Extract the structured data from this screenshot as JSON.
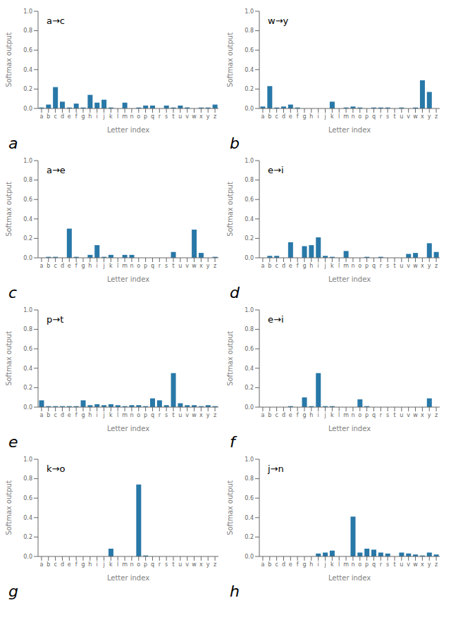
{
  "chart_data": [
    {
      "type": "bar",
      "title": "a→c",
      "annotation": "a",
      "xlabel": "Letter index",
      "ylabel": "Softmax output",
      "color": "#2878a8",
      "ylim": [
        0,
        1.0
      ],
      "yticks": [
        {
          "value": 0.0,
          "label": "0.0"
        },
        0.2,
        0.4,
        0.6,
        0.8,
        {
          "value": 1.0,
          "label": "1.0"
        }
      ],
      "categories": [
        "a",
        "b",
        "c",
        "d",
        "e",
        "f",
        "g",
        "h",
        "i",
        "j",
        "k",
        "l",
        "m",
        "n",
        "o",
        "p",
        "q",
        "r",
        "s",
        "t",
        "u",
        "v",
        "w",
        "x",
        "y",
        "z"
      ],
      "values": [
        0.01,
        0.04,
        0.22,
        0.07,
        0.01,
        0.05,
        0.01,
        0.14,
        0.06,
        0.09,
        0.01,
        0.0,
        0.06,
        0.0,
        0.01,
        0.03,
        0.03,
        0.0,
        0.03,
        0.01,
        0.03,
        0.01,
        0.0,
        0.01,
        0.01,
        0.04
      ]
    },
    {
      "type": "bar",
      "title": "w→y",
      "annotation": "b",
      "xlabel": "Letter index",
      "ylabel": "Softmax output",
      "color": "#2878a8",
      "ylim": [
        0,
        1.0
      ],
      "yticks": [
        {
          "value": 0.0,
          "label": "0.0"
        },
        0.2,
        0.4,
        0.6,
        0.8,
        {
          "value": 1.0,
          "label": "1.0"
        }
      ],
      "categories": [
        "a",
        "b",
        "c",
        "d",
        "e",
        "f",
        "g",
        "h",
        "i",
        "j",
        "k",
        "l",
        "m",
        "n",
        "o",
        "p",
        "q",
        "r",
        "s",
        "t",
        "u",
        "v",
        "w",
        "x",
        "y",
        "z"
      ],
      "values": [
        0.02,
        0.23,
        0.01,
        0.02,
        0.04,
        0.01,
        0.0,
        0.0,
        0.0,
        0.0,
        0.07,
        0.0,
        0.01,
        0.02,
        0.01,
        0.0,
        0.01,
        0.01,
        0.01,
        0.0,
        0.01,
        0.0,
        0.01,
        0.29,
        0.17,
        0.0
      ]
    },
    {
      "type": "bar",
      "title": "a→e",
      "annotation": "c",
      "xlabel": "Letter index",
      "ylabel": "Softmax output",
      "color": "#2878a8",
      "ylim": [
        0,
        1.0
      ],
      "yticks": [
        {
          "value": 0.0,
          "label": "0.0"
        },
        0.2,
        0.4,
        0.6,
        0.8,
        {
          "value": 1.0,
          "label": "1.0"
        }
      ],
      "categories": [
        "a",
        "b",
        "c",
        "d",
        "e",
        "f",
        "g",
        "h",
        "i",
        "j",
        "k",
        "l",
        "m",
        "n",
        "o",
        "p",
        "q",
        "r",
        "s",
        "t",
        "u",
        "v",
        "w",
        "x",
        "y",
        "z"
      ],
      "values": [
        0.0,
        0.01,
        0.01,
        0.0,
        0.3,
        0.01,
        0.0,
        0.03,
        0.13,
        0.01,
        0.03,
        0.0,
        0.03,
        0.03,
        0.0,
        0.0,
        0.0,
        0.0,
        0.0,
        0.06,
        0.0,
        0.0,
        0.29,
        0.05,
        0.0,
        0.01
      ]
    },
    {
      "type": "bar",
      "title": "e→i",
      "annotation": "d",
      "xlabel": "Letter index",
      "ylabel": "Softmax output",
      "color": "#2878a8",
      "ylim": [
        0,
        1.0
      ],
      "yticks": [
        {
          "value": 0.0,
          "label": "0.0"
        },
        0.2,
        0.4,
        0.6,
        0.8,
        {
          "value": 1.0,
          "label": "1.0"
        }
      ],
      "categories": [
        "a",
        "b",
        "c",
        "d",
        "e",
        "f",
        "g",
        "h",
        "i",
        "j",
        "k",
        "l",
        "m",
        "n",
        "o",
        "p",
        "q",
        "r",
        "s",
        "t",
        "u",
        "v",
        "w",
        "x",
        "y",
        "z"
      ],
      "values": [
        0.0,
        0.02,
        0.02,
        0.0,
        0.16,
        0.0,
        0.12,
        0.13,
        0.21,
        0.02,
        0.01,
        0.0,
        0.07,
        0.0,
        0.0,
        0.01,
        0.0,
        0.01,
        0.0,
        0.0,
        0.0,
        0.04,
        0.05,
        0.0,
        0.15,
        0.06
      ]
    },
    {
      "type": "bar",
      "title": "p→t",
      "annotation": "e",
      "xlabel": "Letter index",
      "ylabel": "Softmax output",
      "color": "#2878a8",
      "ylim": [
        0,
        1.0
      ],
      "yticks": [
        {
          "value": 0.0,
          "label": "0.0"
        },
        0.2,
        0.4,
        0.6,
        0.8,
        {
          "value": 1.0,
          "label": "1.0"
        }
      ],
      "categories": [
        "a",
        "b",
        "c",
        "d",
        "e",
        "f",
        "g",
        "h",
        "i",
        "j",
        "k",
        "l",
        "m",
        "n",
        "o",
        "p",
        "q",
        "r",
        "s",
        "t",
        "u",
        "v",
        "w",
        "x",
        "y",
        "z"
      ],
      "values": [
        0.07,
        0.01,
        0.01,
        0.01,
        0.01,
        0.01,
        0.07,
        0.02,
        0.03,
        0.02,
        0.03,
        0.02,
        0.01,
        0.02,
        0.02,
        0.01,
        0.09,
        0.07,
        0.02,
        0.35,
        0.04,
        0.02,
        0.02,
        0.01,
        0.02,
        0.01
      ]
    },
    {
      "type": "bar",
      "title": "e→i",
      "annotation": "f",
      "xlabel": "Letter index",
      "ylabel": "Softmax output",
      "color": "#2878a8",
      "ylim": [
        0,
        1.0
      ],
      "yticks": [
        {
          "value": 0.0,
          "label": "0.0"
        },
        0.2,
        0.4,
        0.6,
        0.8,
        {
          "value": 1.0,
          "label": "1.0"
        }
      ],
      "categories": [
        "a",
        "b",
        "c",
        "d",
        "e",
        "f",
        "g",
        "h",
        "i",
        "j",
        "k",
        "l",
        "m",
        "n",
        "o",
        "p",
        "q",
        "r",
        "s",
        "t",
        "u",
        "v",
        "w",
        "x",
        "y",
        "z"
      ],
      "values": [
        0.0,
        0.0,
        0.0,
        0.0,
        0.01,
        0.0,
        0.1,
        0.01,
        0.35,
        0.01,
        0.01,
        0.0,
        0.0,
        0.0,
        0.08,
        0.01,
        0.0,
        0.0,
        0.0,
        0.0,
        0.0,
        0.0,
        0.0,
        0.0,
        0.09,
        0.0
      ]
    },
    {
      "type": "bar",
      "title": "k→o",
      "annotation": "g",
      "xlabel": "Letter index",
      "ylabel": "Softmax output",
      "color": "#2878a8",
      "ylim": [
        0,
        1.0
      ],
      "yticks": [
        {
          "value": 0.0,
          "label": "0.0"
        },
        0.2,
        0.4,
        0.6,
        0.8,
        {
          "value": 1.0,
          "label": "1.0"
        }
      ],
      "categories": [
        "a",
        "b",
        "c",
        "d",
        "e",
        "f",
        "g",
        "h",
        "i",
        "j",
        "k",
        "l",
        "m",
        "n",
        "o",
        "p",
        "q",
        "r",
        "s",
        "t",
        "u",
        "v",
        "w",
        "x",
        "y",
        "z"
      ],
      "values": [
        0.0,
        0.0,
        0.0,
        0.0,
        0.0,
        0.0,
        0.0,
        0.0,
        0.0,
        0.0,
        0.08,
        0.0,
        0.0,
        0.0,
        0.74,
        0.01,
        0.0,
        0.0,
        0.0,
        0.0,
        0.0,
        0.0,
        0.0,
        0.0,
        0.0,
        0.0
      ]
    },
    {
      "type": "bar",
      "title": "j→n",
      "annotation": "h",
      "xlabel": "Letter index",
      "ylabel": "Softmax output",
      "color": "#2878a8",
      "ylim": [
        0,
        1.0
      ],
      "yticks": [
        {
          "value": 0.0,
          "label": "0.0"
        },
        0.2,
        0.4,
        0.6,
        0.8,
        {
          "value": 1.0,
          "label": "1.0"
        }
      ],
      "categories": [
        "a",
        "b",
        "c",
        "d",
        "e",
        "f",
        "g",
        "h",
        "i",
        "j",
        "k",
        "l",
        "m",
        "n",
        "o",
        "p",
        "q",
        "r",
        "s",
        "t",
        "u",
        "v",
        "w",
        "x",
        "y",
        "z"
      ],
      "values": [
        0.0,
        0.0,
        0.0,
        0.0,
        0.0,
        0.0,
        0.0,
        0.0,
        0.03,
        0.04,
        0.06,
        0.0,
        0.0,
        0.41,
        0.04,
        0.08,
        0.07,
        0.04,
        0.03,
        0.0,
        0.04,
        0.03,
        0.02,
        0.01,
        0.04,
        0.02
      ]
    }
  ]
}
